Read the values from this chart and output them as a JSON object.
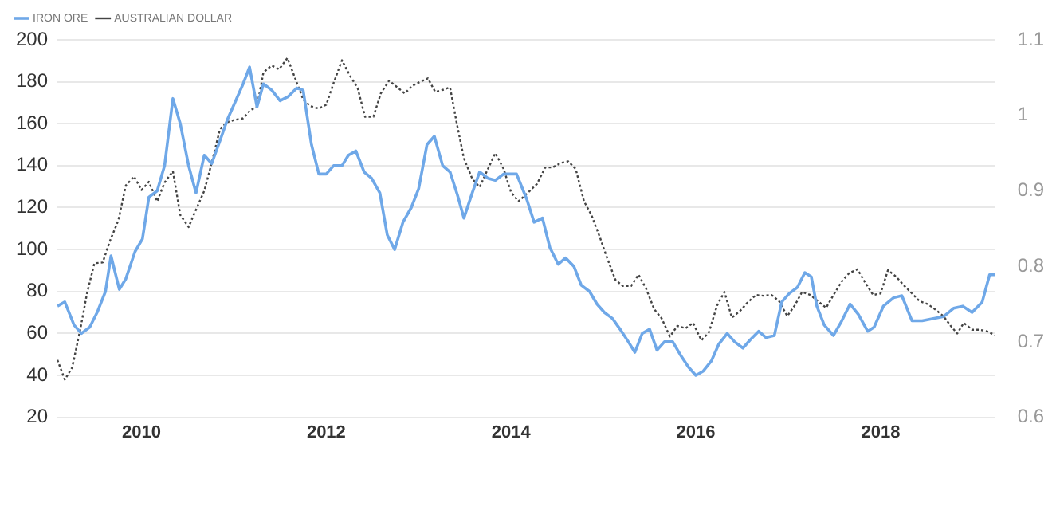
{
  "chart_data": {
    "type": "line",
    "series": [
      {
        "name": "IRON ORE",
        "color": "#6fa8e8",
        "line_style": "solid",
        "x": [
          2009.09,
          2009.17,
          2009.27,
          2009.35,
          2009.44,
          2009.52,
          2009.61,
          2009.67,
          2009.76,
          2009.83,
          2009.93,
          2010.01,
          2010.08,
          2010.17,
          2010.25,
          2010.34,
          2010.42,
          2010.51,
          2010.59,
          2010.68,
          2010.76,
          2010.85,
          2010.93,
          2011.01,
          2011.1,
          2011.17,
          2011.25,
          2011.32,
          2011.41,
          2011.5,
          2011.59,
          2011.68,
          2011.75,
          2011.84,
          2011.92,
          2012.0,
          2012.08,
          2012.17,
          2012.24,
          2012.32,
          2012.41,
          2012.49,
          2012.58,
          2012.66,
          2012.74,
          2012.83,
          2012.92,
          2013.0,
          2013.09,
          2013.17,
          2013.26,
          2013.34,
          2013.42,
          2013.49,
          2013.58,
          2013.66,
          2013.75,
          2013.83,
          2013.92,
          2014.06,
          2014.17,
          2014.25,
          2014.34,
          2014.42,
          2014.51,
          2014.59,
          2014.68,
          2014.76,
          2014.85,
          2014.93,
          2015.01,
          2015.1,
          2015.18,
          2015.27,
          2015.34,
          2015.42,
          2015.5,
          2015.58,
          2015.66,
          2015.75,
          2015.83,
          2015.92,
          2016.0,
          2016.08,
          2016.17,
          2016.25,
          2016.34,
          2016.42,
          2016.51,
          2016.59,
          2016.68,
          2016.76,
          2016.85,
          2016.93,
          2017.01,
          2017.1,
          2017.18,
          2017.25,
          2017.31,
          2017.39,
          2017.49,
          2017.58,
          2017.67,
          2017.76,
          2017.86,
          2017.93,
          2018.03,
          2018.14,
          2018.23,
          2018.34,
          2018.45,
          2018.56,
          2018.68,
          2018.79,
          2018.89,
          2018.99,
          2019.1,
          2019.18,
          2019.24
        ],
        "values": [
          73,
          75,
          64,
          60,
          63,
          70,
          80,
          97,
          81,
          86,
          99,
          105,
          125,
          128,
          140,
          172,
          160,
          140,
          127,
          145,
          141,
          152,
          162,
          170,
          179,
          187,
          168,
          179,
          176,
          171,
          173,
          177,
          176,
          150,
          136,
          136,
          140,
          140,
          145,
          147,
          137,
          134,
          127,
          107,
          100,
          113,
          120,
          129,
          150,
          154,
          140,
          137,
          126,
          115,
          127,
          137,
          134,
          133,
          136,
          136,
          124,
          113,
          115,
          101,
          93,
          96,
          92,
          83,
          80,
          74,
          70,
          67,
          62,
          56,
          51,
          60,
          62,
          52,
          56,
          56,
          50,
          44,
          40,
          42,
          47,
          55,
          60,
          56,
          53,
          57,
          61,
          58,
          59,
          75,
          79,
          82,
          89,
          87,
          73,
          64,
          59,
          66,
          74,
          69,
          61,
          63,
          73,
          77,
          78,
          66,
          66,
          67,
          68,
          72,
          73,
          70,
          75,
          88,
          88
        ]
      },
      {
        "name": "AUSTRALIAN DOLLAR",
        "color": "#444444",
        "line_style": "dotted",
        "axis": "y2",
        "x": [
          2009.09,
          2009.17,
          2009.25,
          2009.34,
          2009.41,
          2009.49,
          2009.58,
          2009.66,
          2009.75,
          2009.83,
          2009.92,
          2010.0,
          2010.08,
          2010.17,
          2010.25,
          2010.34,
          2010.42,
          2010.51,
          2010.59,
          2010.68,
          2010.76,
          2010.85,
          2010.93,
          2011.01,
          2011.1,
          2011.18,
          2011.25,
          2011.32,
          2011.41,
          2011.49,
          2011.58,
          2011.66,
          2011.75,
          2011.83,
          2011.92,
          2012.0,
          2012.08,
          2012.17,
          2012.25,
          2012.34,
          2012.42,
          2012.51,
          2012.59,
          2012.68,
          2012.76,
          2012.85,
          2012.93,
          2013.01,
          2013.1,
          2013.18,
          2013.27,
          2013.34,
          2013.41,
          2013.49,
          2013.58,
          2013.66,
          2013.75,
          2013.83,
          2013.92,
          2014.0,
          2014.08,
          2014.17,
          2014.28,
          2014.37,
          2014.45,
          2014.54,
          2014.62,
          2014.7,
          2014.79,
          2014.87,
          2014.96,
          2015.04,
          2015.13,
          2015.21,
          2015.3,
          2015.38,
          2015.46,
          2015.55,
          2015.63,
          2015.72,
          2015.8,
          2015.89,
          2015.97,
          2016.06,
          2016.14,
          2016.23,
          2016.31,
          2016.39,
          2016.48,
          2016.56,
          2016.65,
          2016.73,
          2016.82,
          2016.9,
          2016.99,
          2017.07,
          2017.15,
          2017.24,
          2017.32,
          2017.41,
          2017.49,
          2017.58,
          2017.66,
          2017.75,
          2017.83,
          2017.92,
          2018.0,
          2018.08,
          2018.17,
          2018.25,
          2018.34,
          2018.42,
          2018.51,
          2018.59,
          2018.68,
          2018.76,
          2018.83,
          2018.9,
          2018.99,
          2019.07,
          2019.15,
          2019.24
        ],
        "values": [
          0.676,
          0.65,
          0.666,
          0.718,
          0.764,
          0.804,
          0.805,
          0.834,
          0.861,
          0.907,
          0.919,
          0.901,
          0.912,
          0.886,
          0.911,
          0.926,
          0.868,
          0.852,
          0.875,
          0.9,
          0.937,
          0.982,
          0.991,
          0.994,
          0.996,
          1.007,
          1.011,
          1.057,
          1.066,
          1.061,
          1.076,
          1.05,
          1.021,
          1.012,
          1.009,
          1.014,
          1.043,
          1.073,
          1.054,
          1.036,
          0.998,
          0.998,
          1.029,
          1.046,
          1.038,
          1.029,
          1.039,
          1.044,
          1.049,
          1.031,
          1.034,
          1.037,
          0.991,
          0.943,
          0.916,
          0.905,
          0.929,
          0.95,
          0.929,
          0.898,
          0.886,
          0.896,
          0.909,
          0.931,
          0.931,
          0.937,
          0.939,
          0.929,
          0.886,
          0.868,
          0.839,
          0.811,
          0.782,
          0.774,
          0.774,
          0.789,
          0.771,
          0.743,
          0.731,
          0.707,
          0.721,
          0.718,
          0.725,
          0.702,
          0.712,
          0.748,
          0.766,
          0.732,
          0.741,
          0.752,
          0.762,
          0.761,
          0.762,
          0.754,
          0.734,
          0.748,
          0.766,
          0.762,
          0.754,
          0.745,
          0.762,
          0.78,
          0.791,
          0.796,
          0.779,
          0.762,
          0.764,
          0.795,
          0.786,
          0.775,
          0.764,
          0.754,
          0.75,
          0.743,
          0.734,
          0.721,
          0.711,
          0.725,
          0.716,
          0.716,
          0.714,
          0.709
        ]
      }
    ],
    "xlim": [
      2009.09,
      2019.24
    ],
    "xticks": [
      2010,
      2012,
      2014,
      2016,
      2018
    ],
    "ylim": [
      20,
      200
    ],
    "yticks": [
      20,
      40,
      60,
      80,
      100,
      120,
      140,
      160,
      180,
      200
    ],
    "y2lim": [
      0.6,
      1.1
    ],
    "y2ticks": [
      0.6,
      0.7,
      0.8,
      0.9,
      1,
      1.1
    ],
    "grid": "y",
    "legend": "top left",
    "marker": "none"
  }
}
